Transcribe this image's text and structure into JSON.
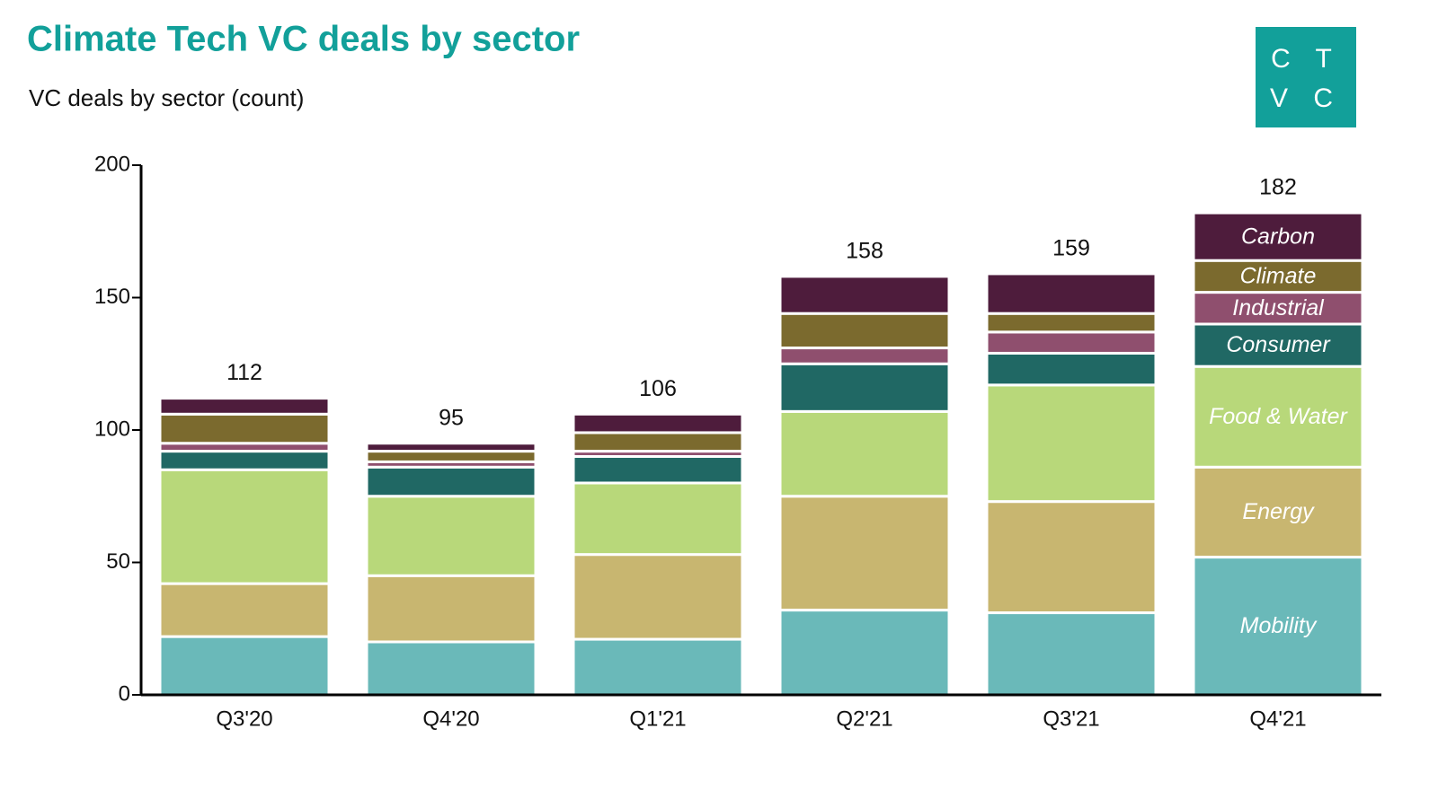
{
  "chart_data": {
    "type": "stacked-bar",
    "title": "Climate Tech VC deals by sector",
    "subtitle": "VC deals by sector (count)",
    "logo": [
      "C T",
      "V C"
    ],
    "categories": [
      "Q3'20",
      "Q4'20",
      "Q1'21",
      "Q2'21",
      "Q3'21",
      "Q4'21"
    ],
    "series": [
      {
        "name": "Mobility",
        "color": "#6ab9b9",
        "values": [
          22,
          20,
          21,
          32,
          31,
          52
        ]
      },
      {
        "name": "Energy",
        "color": "#c8b670",
        "values": [
          20,
          25,
          32,
          43,
          42,
          34
        ]
      },
      {
        "name": "Food & Water",
        "color": "#b8d87a",
        "values": [
          43,
          30,
          27,
          32,
          44,
          38
        ]
      },
      {
        "name": "Consumer",
        "color": "#206864",
        "values": [
          7,
          11,
          10,
          18,
          12,
          16
        ]
      },
      {
        "name": "Industrial",
        "color": "#8f4f6e",
        "values": [
          3,
          2,
          2,
          6,
          8,
          12
        ]
      },
      {
        "name": "Climate",
        "color": "#7b6a2e",
        "values": [
          11,
          4,
          7,
          13,
          7,
          12
        ]
      },
      {
        "name": "Carbon",
        "color": "#4e1c3c",
        "values": [
          6,
          3,
          7,
          14,
          15,
          18
        ]
      }
    ],
    "totals": [
      112,
      95,
      106,
      158,
      159,
      182
    ],
    "ylim": [
      0,
      200
    ],
    "yticks": [
      0,
      50,
      100,
      150,
      200
    ]
  }
}
